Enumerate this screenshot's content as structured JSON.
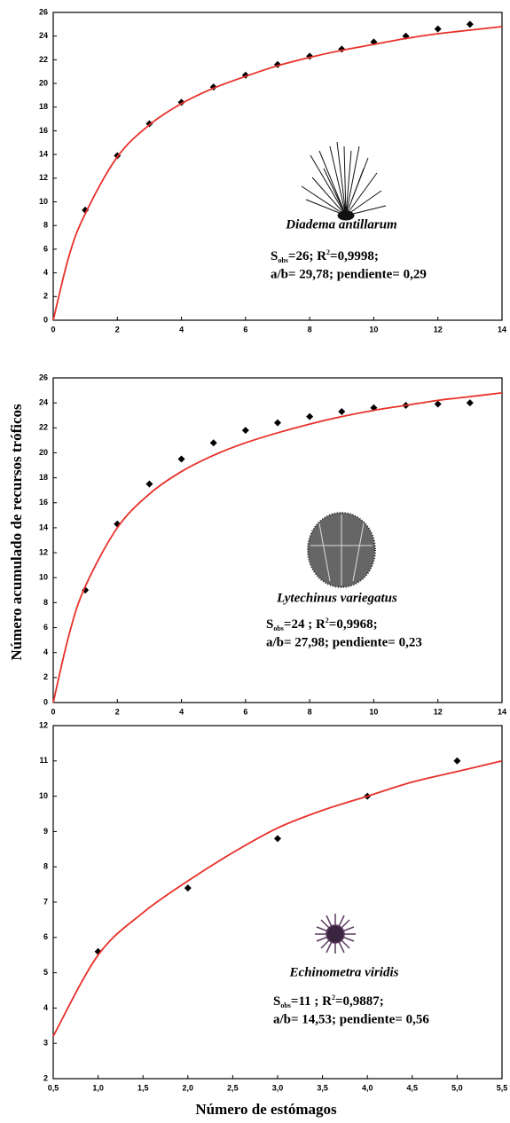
{
  "figure": {
    "ylabel": "Número acumulado de recursos tróficos",
    "xlabel": "Número de estómagos"
  },
  "chart_data": [
    {
      "type": "scatter",
      "xlim": [
        0,
        14
      ],
      "xticks": [
        0,
        2,
        4,
        6,
        8,
        10,
        12,
        14
      ],
      "ylim": [
        0,
        26
      ],
      "yticks": [
        0,
        2,
        4,
        6,
        8,
        10,
        12,
        14,
        16,
        18,
        20,
        22,
        24,
        26
      ],
      "series": [
        {
          "color": "#000000",
          "marker": "diamond",
          "x": [
            1,
            2,
            3,
            4,
            5,
            6,
            7,
            8,
            9,
            10,
            11,
            12,
            13
          ],
          "values": [
            9.3,
            13.9,
            16.6,
            18.4,
            19.7,
            20.7,
            21.6,
            22.3,
            22.9,
            23.5,
            24.0,
            24.6,
            25.0
          ]
        },
        {
          "type": "line",
          "color": "#e8302a",
          "x": [
            0,
            0.5,
            1,
            2,
            3,
            4,
            5,
            6,
            7,
            8,
            9,
            10,
            11,
            12,
            13,
            14
          ],
          "values": [
            0,
            5.5,
            9.0,
            13.8,
            16.5,
            18.3,
            19.6,
            20.6,
            21.5,
            22.2,
            22.8,
            23.3,
            23.8,
            24.2,
            24.5,
            24.8
          ]
        }
      ],
      "annotations": {
        "species": "Diadema antillarum",
        "stats": [
          "S",
          "obs",
          "=26; R",
          "2",
          "=0,9998;"
        ],
        "stats2": "a/b= 29,78; pendiente= 0,29"
      }
    },
    {
      "type": "scatter",
      "xlim": [
        0,
        14
      ],
      "xticks": [
        0,
        2,
        4,
        6,
        8,
        10,
        12,
        14
      ],
      "ylim": [
        0,
        26
      ],
      "yticks": [
        0,
        2,
        4,
        6,
        8,
        10,
        12,
        14,
        16,
        18,
        20,
        22,
        24,
        26
      ],
      "series": [
        {
          "color": "#000000",
          "marker": "diamond",
          "x": [
            1,
            2,
            3,
            4,
            5,
            6,
            7,
            8,
            9,
            10,
            11,
            12,
            13
          ],
          "values": [
            9.0,
            14.3,
            17.5,
            19.5,
            20.8,
            21.8,
            22.4,
            22.9,
            23.3,
            23.6,
            23.8,
            23.9,
            24.0
          ]
        },
        {
          "type": "line",
          "color": "#e8302a",
          "x": [
            0,
            0.5,
            1,
            2,
            3,
            4,
            5,
            6,
            7,
            8,
            9,
            10,
            11,
            12,
            13,
            14
          ],
          "values": [
            0,
            5.5,
            9.3,
            14.0,
            16.7,
            18.5,
            19.8,
            20.8,
            21.6,
            22.3,
            22.9,
            23.4,
            23.8,
            24.2,
            24.5,
            24.8
          ]
        }
      ],
      "annotations": {
        "species": "Lytechinus variegatus",
        "stats": [
          "S",
          "obs",
          "=24 ; R",
          "2",
          "=0,9968;"
        ],
        "stats2": "a/b= 27,98; pendiente= 0,23"
      }
    },
    {
      "type": "scatter",
      "xlim": [
        0.5,
        5.5
      ],
      "xticks": [
        {
          "value": 0.5,
          "label": "0,5"
        },
        {
          "value": 1,
          "label": "1,0"
        },
        {
          "value": 1.5,
          "label": "1,5"
        },
        {
          "value": 2,
          "label": "2,0"
        },
        {
          "value": 2.5,
          "label": "2,5"
        },
        {
          "value": 3,
          "label": "3,0"
        },
        {
          "value": 3.5,
          "label": "3,5"
        },
        {
          "value": 4,
          "label": "4,0"
        },
        {
          "value": 4.5,
          "label": "4,5"
        },
        {
          "value": 5,
          "label": "5,0"
        },
        {
          "value": 5.5,
          "label": "5,5"
        }
      ],
      "ylim": [
        2,
        12
      ],
      "yticks": [
        2,
        3,
        4,
        5,
        6,
        7,
        8,
        9,
        10,
        11,
        12
      ],
      "series": [
        {
          "color": "#000000",
          "marker": "diamond",
          "x": [
            1,
            2,
            3,
            4,
            5
          ],
          "values": [
            5.6,
            7.4,
            8.8,
            10.0,
            11.0
          ]
        },
        {
          "type": "line",
          "color": "#e8302a",
          "x": [
            0.5,
            1,
            1.5,
            2,
            2.5,
            3,
            3.5,
            4,
            4.5,
            5,
            5.5
          ],
          "values": [
            3.2,
            5.5,
            6.7,
            7.6,
            8.4,
            9.1,
            9.6,
            10.0,
            10.4,
            10.7,
            11.0
          ]
        }
      ],
      "annotations": {
        "species": "Echinometra viridis",
        "stats": [
          "S",
          "obs",
          "=11 ; R",
          "2",
          "=0,9887;"
        ],
        "stats2": "a/b= 14,53; pendiente= 0,56"
      }
    }
  ]
}
